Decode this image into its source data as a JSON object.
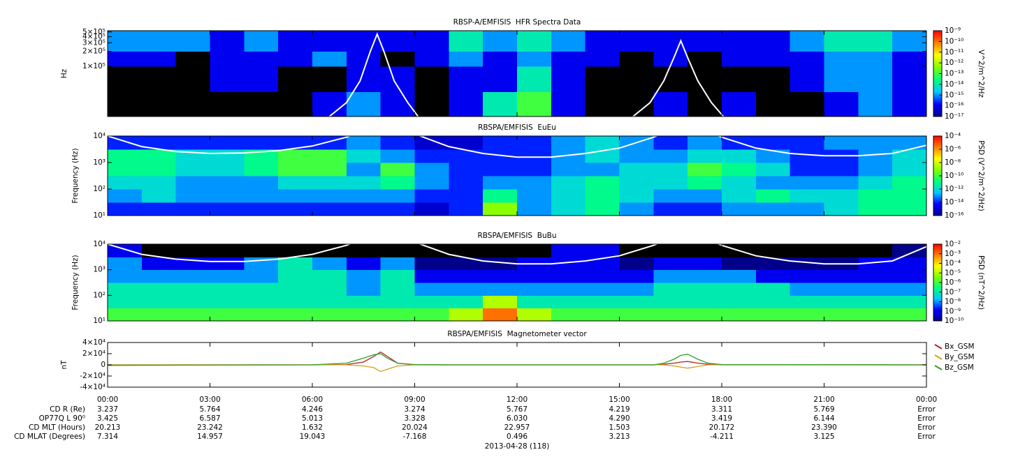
{
  "chart_data": [
    {
      "type": "spectrogram",
      "title": "RBSP-A/EMFISIS  HFR Spectra Data",
      "ylabel": "Hz",
      "yscale": "log",
      "xlim": [
        0,
        24
      ],
      "ylim": [
        9400,
        530000
      ],
      "yticks": [
        {
          "value": 100000,
          "label": "1×10⁵"
        },
        {
          "value": 200000,
          "label": "2×10⁵"
        },
        {
          "value": 300000,
          "label": "3×10⁵"
        },
        {
          "value": 400000,
          "label": "4×10⁵"
        },
        {
          "value": 500000,
          "label": "5×10⁵"
        }
      ],
      "xbins": [
        0,
        1,
        2,
        3,
        4,
        5,
        6,
        7,
        8,
        9,
        10,
        11,
        12,
        13,
        14,
        15,
        16,
        17,
        18,
        19,
        20,
        21,
        22,
        23,
        24
      ],
      "ybins": [
        9400,
        30000,
        100000,
        200000,
        530000
      ],
      "z": [
        [
          1e-18,
          1e-18,
          1e-18,
          1e-18,
          1e-18,
          1e-18,
          1e-16,
          1e-15,
          1e-16,
          1e-18,
          1e-16,
          1e-14,
          1e-13,
          1e-16,
          1e-18,
          1e-18,
          1e-16,
          1e-18,
          1e-16,
          1e-18,
          1e-18,
          1e-16,
          1e-15,
          1e-16
        ],
        [
          1e-18,
          1e-18,
          1e-18,
          1e-16,
          1e-16,
          1e-18,
          1e-18,
          1e-16,
          1e-16,
          1e-18,
          1e-16,
          1e-16,
          1e-14,
          1e-16,
          1e-18,
          1e-18,
          1e-18,
          1e-18,
          1e-18,
          1e-18,
          1e-16,
          1e-15,
          1e-15,
          1e-16
        ],
        [
          1e-16,
          1e-16,
          1e-18,
          1e-16,
          1e-16,
          1e-16,
          1e-15,
          1e-16,
          1e-18,
          1e-16,
          1e-15,
          1e-16,
          1e-15,
          1e-16,
          1e-16,
          1e-18,
          1e-16,
          1e-18,
          1e-16,
          1e-16,
          1e-16,
          1e-15,
          1e-15,
          1e-16
        ],
        [
          1e-15,
          1e-15,
          1e-15,
          1e-16,
          1e-15,
          1e-16,
          1e-16,
          1e-16,
          1e-16,
          1e-16,
          1e-14,
          1e-15,
          1e-14,
          1e-15,
          1e-16,
          1e-16,
          1e-16,
          1e-16,
          1e-16,
          1e-16,
          1e-15,
          1e-14,
          1e-14,
          1e-15
        ]
      ],
      "zscale": "log",
      "zlim": [
        1e-17,
        1e-09
      ],
      "zlabel": "V^2/m^2/Hz",
      "zticks": [
        {
          "value": 1e-09,
          "label": "10⁻⁹"
        },
        {
          "value": 1e-10,
          "label": "10⁻¹⁰"
        },
        {
          "value": 1e-11,
          "label": "10⁻¹¹"
        },
        {
          "value": 1e-12,
          "label": "10⁻¹²"
        },
        {
          "value": 1e-13,
          "label": "10⁻¹³"
        },
        {
          "value": 1e-14,
          "label": "10⁻¹⁴"
        },
        {
          "value": 1e-15,
          "label": "10⁻¹⁵"
        },
        {
          "value": 1e-16,
          "label": "10⁻¹⁶"
        },
        {
          "value": 1e-17,
          "label": "10⁻¹⁷"
        }
      ],
      "colormap": [
        "#00008b",
        "#0000ff",
        "#00c8ff",
        "#00ff80",
        "#80ff00",
        "#ffff00",
        "#ff8000",
        "#ff0000"
      ],
      "below_color": "#000000",
      "overlay": {
        "color": "#ffffff",
        "x": [
          6.5,
          7.0,
          7.4,
          7.7,
          7.9,
          8.1,
          8.4,
          8.8,
          9.1,
          12,
          15.4,
          15.9,
          16.3,
          16.6,
          16.8,
          17.0,
          17.3,
          17.7,
          18.05
        ],
        "values": [
          9400,
          18000,
          50000,
          200000,
          450000,
          200000,
          50000,
          18000,
          9400,
          null,
          9400,
          18000,
          50000,
          150000,
          330000,
          150000,
          50000,
          18000,
          9400
        ]
      }
    },
    {
      "type": "spectrogram",
      "title": "RBSPA/EMFISIS  EuEu",
      "ylabel": "Frequency (Hz)",
      "yscale": "log",
      "xlim": [
        0,
        24
      ],
      "ylim": [
        10,
        10000
      ],
      "yticks": [
        {
          "value": 10,
          "label": "10¹"
        },
        {
          "value": 100,
          "label": "10²"
        },
        {
          "value": 1000,
          "label": "10³"
        },
        {
          "value": 10000,
          "label": "10⁴"
        }
      ],
      "xbins": [
        0,
        1,
        2,
        3,
        4,
        5,
        6,
        7,
        8,
        9,
        10,
        11,
        12,
        13,
        14,
        15,
        16,
        17,
        18,
        19,
        20,
        21,
        22,
        23,
        24
      ],
      "ybins": [
        10,
        31.6,
        100,
        316,
        1000,
        3162,
        10000
      ],
      "z": [
        [
          1e-14,
          1e-14,
          1e-14,
          1e-14,
          1e-14,
          1e-14,
          1e-14,
          1e-14,
          1e-14,
          1e-15,
          1e-14,
          1e-09,
          1e-13,
          1e-12,
          1e-11,
          1e-13,
          1e-14,
          1e-14,
          1e-13,
          1e-13,
          1e-13,
          1e-12,
          1e-11,
          1e-11
        ],
        [
          1e-13,
          1e-12,
          1e-13,
          1e-13,
          1e-13,
          1e-13,
          1e-13,
          1e-13,
          1e-13,
          1e-14,
          1e-14,
          1e-11,
          1e-13,
          1e-12,
          1e-11,
          1e-12,
          1e-13,
          1e-13,
          1e-12,
          1e-11,
          1e-12,
          1e-12,
          1e-11,
          1e-11
        ],
        [
          1e-12,
          1e-12,
          1e-13,
          1e-13,
          1e-13,
          1e-12,
          1e-12,
          1e-12,
          1e-11,
          1e-13,
          1e-14,
          1e-13,
          1e-13,
          1e-12,
          1e-11,
          1e-12,
          1e-12,
          1e-11,
          1e-12,
          1e-13,
          1e-13,
          1e-13,
          1e-12,
          1e-11
        ],
        [
          1e-11,
          1e-11,
          1e-12,
          1e-12,
          1e-11,
          1e-10,
          1e-10,
          1e-13,
          1e-10,
          1e-13,
          1e-14,
          1e-14,
          1e-14,
          1e-13,
          1e-13,
          1e-12,
          1e-12,
          1e-10,
          1e-11,
          1e-12,
          1e-14,
          1e-14,
          1e-13,
          1e-12
        ],
        [
          1e-11,
          1e-11,
          1e-12,
          1e-12,
          1e-11,
          1e-10,
          1e-10,
          1e-12,
          1e-13,
          1e-14,
          1e-14,
          1e-14,
          1e-14,
          1e-13,
          1e-12,
          1e-13,
          1e-13,
          1e-12,
          1e-12,
          1e-13,
          1e-14,
          1e-14,
          1e-13,
          1e-12
        ],
        [
          1e-14,
          1e-14,
          1e-14,
          1e-14,
          1e-14,
          1e-14,
          1e-14,
          1e-13,
          1e-14,
          1e-15,
          1e-15,
          1e-14,
          1e-14,
          1e-13,
          1e-12,
          1e-13,
          1e-14,
          1e-13,
          1e-14,
          1e-14,
          1e-14,
          1e-13,
          1e-13,
          1e-13
        ]
      ],
      "zscale": "log",
      "zlim": [
        1e-16,
        0.0001
      ],
      "zlabel": "PSD (V^2/m^2/Hz)",
      "zticks": [
        {
          "value": 0.0001,
          "label": "10⁻⁴"
        },
        {
          "value": 1e-06,
          "label": "10⁻⁶"
        },
        {
          "value": 1e-08,
          "label": "10⁻⁸"
        },
        {
          "value": 1e-10,
          "label": "10⁻¹⁰"
        },
        {
          "value": 1e-12,
          "label": "10⁻¹²"
        },
        {
          "value": 1e-14,
          "label": "10⁻¹⁴"
        },
        {
          "value": 1e-16,
          "label": "10⁻¹⁶"
        }
      ],
      "colormap": [
        "#00008b",
        "#0000ff",
        "#00c8ff",
        "#00ff80",
        "#80ff00",
        "#ffff00",
        "#ff8000",
        "#ff0000"
      ],
      "below_color": "#000000",
      "overlay": {
        "color": "#ffffff",
        "x": [
          0,
          1,
          2,
          3,
          4,
          5,
          6,
          7,
          8,
          9,
          10,
          11,
          12,
          13,
          14,
          15,
          16,
          17,
          18,
          19,
          20,
          21,
          22,
          23,
          24
        ],
        "values": [
          10000,
          4000,
          2600,
          2200,
          2300,
          2800,
          4200,
          9000,
          30000,
          12000,
          4000,
          2200,
          1600,
          1600,
          2200,
          3500,
          9000,
          30000,
          9000,
          3500,
          2200,
          1800,
          1800,
          2200,
          4500
        ]
      }
    },
    {
      "type": "spectrogram",
      "title": "RBSPA/EMFISIS  BuBu",
      "ylabel": "Frequency (Hz)",
      "yscale": "log",
      "xlim": [
        0,
        24
      ],
      "ylim": [
        10,
        10000
      ],
      "yticks": [
        {
          "value": 10,
          "label": "10¹"
        },
        {
          "value": 100,
          "label": "10²"
        },
        {
          "value": 1000,
          "label": "10³"
        },
        {
          "value": 10000,
          "label": "10⁴"
        }
      ],
      "xbins": [
        0,
        1,
        2,
        3,
        4,
        5,
        6,
        7,
        8,
        9,
        10,
        11,
        12,
        13,
        14,
        15,
        16,
        17,
        18,
        19,
        20,
        21,
        22,
        23,
        24
      ],
      "ybins": [
        10,
        31.6,
        100,
        316,
        1000,
        3162,
        10000
      ],
      "z": [
        [
          1e-06,
          1e-06,
          1e-06,
          1e-06,
          1e-06,
          1e-06,
          1e-06,
          1e-06,
          1e-06,
          1e-06,
          1e-05,
          0.001,
          1e-05,
          1e-06,
          1e-06,
          1e-06,
          1e-06,
          1e-06,
          1e-06,
          1e-06,
          1e-06,
          1e-06,
          1e-06,
          1e-06
        ],
        [
          1e-07,
          1e-07,
          1e-07,
          1e-07,
          1e-07,
          1e-07,
          1e-07,
          1e-07,
          1e-07,
          1e-07,
          1e-07,
          1e-05,
          1e-07,
          1e-07,
          1e-07,
          1e-07,
          1e-07,
          1e-07,
          1e-07,
          1e-07,
          1e-07,
          1e-07,
          1e-07,
          1e-07
        ],
        [
          1e-07,
          1e-07,
          1e-07,
          1e-07,
          1e-07,
          1e-07,
          1e-07,
          1e-08,
          1e-07,
          1e-08,
          1e-08,
          1e-08,
          1e-08,
          1e-08,
          1e-08,
          1e-08,
          1e-07,
          1e-07,
          1e-07,
          1e-07,
          1e-08,
          1e-08,
          1e-08,
          1e-08
        ],
        [
          1e-08,
          1e-08,
          1e-08,
          1e-08,
          1e-08,
          1e-07,
          1e-07,
          1e-08,
          1e-07,
          1e-09,
          1e-09,
          1e-09,
          1e-09,
          1e-09,
          1e-09,
          1e-09,
          1e-08,
          1e-08,
          1e-08,
          1e-09,
          1e-09,
          1e-09,
          1e-09,
          1e-09
        ],
        [
          1e-08,
          1e-09,
          1e-09,
          1e-09,
          1e-08,
          1e-07,
          1e-08,
          1e-09,
          1e-08,
          1e-10,
          1e-10,
          1e-10,
          1e-09,
          1e-09,
          1e-09,
          1e-10,
          1e-09,
          1e-09,
          1e-10,
          1e-10,
          1e-10,
          1e-10,
          1e-09,
          1e-09
        ],
        [
          1e-09,
          1e-11,
          1e-11,
          1e-11,
          1e-11,
          1e-11,
          1e-11,
          1e-11,
          1e-11,
          1e-11,
          1e-11,
          1e-11,
          1e-11,
          1e-09,
          1e-09,
          1e-11,
          1e-11,
          1e-11,
          1e-11,
          1e-11,
          1e-11,
          1e-11,
          1e-11,
          1e-10
        ]
      ],
      "zscale": "log",
      "zlim": [
        1e-10,
        0.01
      ],
      "zlabel": "PSD (nT^2/Hz)",
      "zticks": [
        {
          "value": 0.01,
          "label": "10⁻²"
        },
        {
          "value": 0.001,
          "label": "10⁻³"
        },
        {
          "value": 0.0001,
          "label": "10⁻⁴"
        },
        {
          "value": 1e-05,
          "label": "10⁻⁵"
        },
        {
          "value": 1e-06,
          "label": "10⁻⁶"
        },
        {
          "value": 1e-07,
          "label": "10⁻⁷"
        },
        {
          "value": 1e-08,
          "label": "10⁻⁸"
        },
        {
          "value": 1e-09,
          "label": "10⁻⁹"
        },
        {
          "value": 1e-10,
          "label": "10⁻¹⁰"
        }
      ],
      "colormap": [
        "#00008b",
        "#0000ff",
        "#00c8ff",
        "#00ff80",
        "#80ff00",
        "#ffff00",
        "#ff8000",
        "#ff0000"
      ],
      "below_color": "#000000",
      "overlay": {
        "color": "#ffffff",
        "x": [
          0,
          1,
          2,
          3,
          4,
          5,
          6,
          7,
          8,
          9,
          10,
          11,
          12,
          13,
          14,
          15,
          16,
          17,
          18,
          19,
          20,
          21,
          22,
          23,
          24
        ],
        "values": [
          10000,
          4000,
          2600,
          2100,
          2100,
          2600,
          4000,
          9000,
          30000,
          12000,
          4000,
          2200,
          1700,
          1700,
          2200,
          3500,
          9000,
          30000,
          9000,
          3500,
          2200,
          1700,
          1700,
          2200,
          8000
        ]
      }
    },
    {
      "type": "line",
      "title": "RBSPA/EMFISIS  Magnetometer vector",
      "ylabel": "nT",
      "legend": "right",
      "xlim": [
        0,
        24
      ],
      "ylim": [
        -40000,
        40000
      ],
      "xticks": [
        {
          "value": 0,
          "label": "00:00"
        },
        {
          "value": 3,
          "label": "03:00"
        },
        {
          "value": 6,
          "label": "06:00"
        },
        {
          "value": 9,
          "label": "09:00"
        },
        {
          "value": 12,
          "label": "12:00"
        },
        {
          "value": 15,
          "label": "15:00"
        },
        {
          "value": 18,
          "label": "18:00"
        },
        {
          "value": 21,
          "label": "21:00"
        },
        {
          "value": 24,
          "label": "00:00"
        }
      ],
      "yticks": [
        {
          "value": -40000,
          "label": "-4×10⁴"
        },
        {
          "value": -20000,
          "label": "-2×10⁴"
        },
        0,
        {
          "value": 20000,
          "label": "2×10⁴"
        },
        {
          "value": 40000,
          "label": "4×10⁴"
        }
      ],
      "x": [
        0,
        6,
        7,
        7.5,
        7.8,
        8.0,
        8.2,
        8.5,
        9,
        10,
        16,
        16.3,
        16.6,
        16.8,
        17.0,
        17.3,
        17.6,
        18,
        24
      ],
      "series": [
        {
          "name": "Bx_GSM",
          "color": "#b22222",
          "values": [
            0,
            0,
            500,
            5000,
            15000,
            23000,
            15000,
            3000,
            0,
            0,
            0,
            1000,
            3000,
            5000,
            6000,
            3000,
            1000,
            0,
            0
          ]
        },
        {
          "name": "By_GSM",
          "color": "#d4a017",
          "values": [
            0,
            0,
            0,
            -2000,
            -5000,
            -12000,
            -8000,
            -2000,
            0,
            0,
            0,
            0,
            -2000,
            -4000,
            -6000,
            -3000,
            0,
            0,
            0
          ]
        },
        {
          "name": "Bz_GSM",
          "color": "#2ca02c",
          "values": [
            -1000,
            0,
            3000,
            12000,
            18000,
            20000,
            12000,
            3000,
            500,
            0,
            0,
            3000,
            10000,
            17000,
            19000,
            10000,
            3000,
            500,
            0
          ]
        }
      ]
    }
  ],
  "ephemeris": {
    "rows": [
      {
        "label": "CD R (Re)",
        "values": [
          "3.237",
          "5.764",
          "4.246",
          "3.274",
          "5.767",
          "4.219",
          "3.311",
          "5.769",
          "Error"
        ]
      },
      {
        "label": "OP77Q L 90⁰",
        "values": [
          "3.425",
          "6.587",
          "5.013",
          "3.328",
          "6.030",
          "4.290",
          "3.419",
          "6.144",
          "Error"
        ]
      },
      {
        "label": "CD MLT (Hours)",
        "values": [
          "20.213",
          "23.242",
          "1.632",
          "20.024",
          "22.957",
          "1.503",
          "20.172",
          "23.390",
          "Error"
        ]
      },
      {
        "label": "CD MLAT (Degrees)",
        "values": [
          "7.314",
          "14.957",
          "19.043",
          "-7.168",
          "0.496",
          "3.213",
          "-4.211",
          "3.125",
          "Error"
        ]
      }
    ],
    "date": "2013-04-28 (118)"
  }
}
